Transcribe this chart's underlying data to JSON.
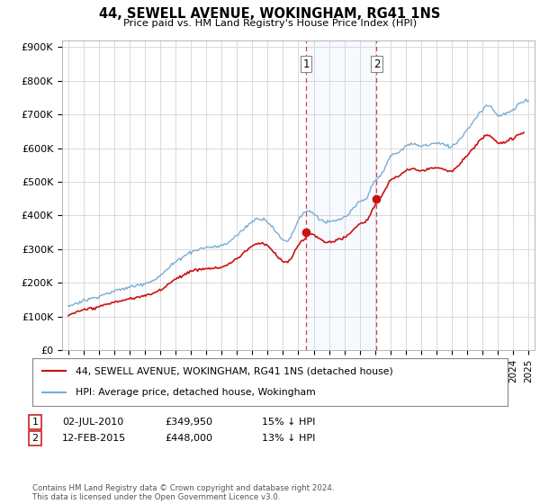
{
  "title": "44, SEWELL AVENUE, WOKINGHAM, RG41 1NS",
  "subtitle": "Price paid vs. HM Land Registry's House Price Index (HPI)",
  "ylabel_ticks": [
    "£0",
    "£100K",
    "£200K",
    "£300K",
    "£400K",
    "£500K",
    "£600K",
    "£700K",
    "£800K",
    "£900K"
  ],
  "ytick_values": [
    0,
    100000,
    200000,
    300000,
    400000,
    500000,
    600000,
    700000,
    800000,
    900000
  ],
  "ylim": [
    0,
    920000
  ],
  "xlim_start": 1994.6,
  "xlim_end": 2025.4,
  "hpi_color": "#7aadd4",
  "price_color": "#cc1111",
  "sale1_date": 2010.5,
  "sale1_price": 349950,
  "sale2_date": 2015.1,
  "sale2_price": 448000,
  "legend_line1": "44, SEWELL AVENUE, WOKINGHAM, RG41 1NS (detached house)",
  "legend_line2": "HPI: Average price, detached house, Wokingham",
  "footer": "Contains HM Land Registry data © Crown copyright and database right 2024.\nThis data is licensed under the Open Government Licence v3.0.",
  "background_color": "#ffffff",
  "grid_color": "#cccccc",
  "shade_color": "#ddeeff"
}
